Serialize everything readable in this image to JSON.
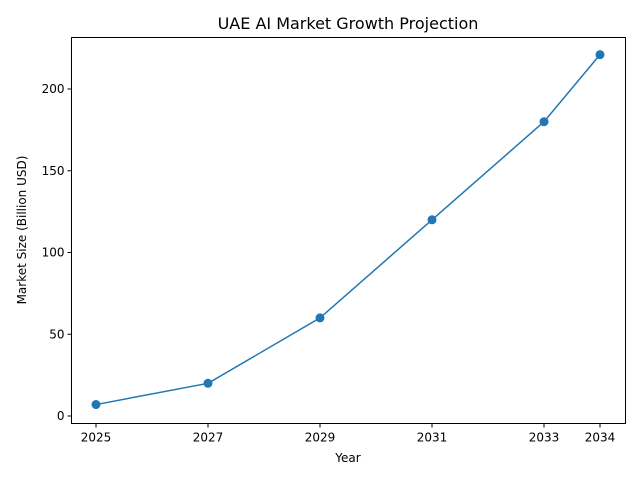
{
  "chart_data": {
    "type": "line",
    "title": "UAE AI Market Growth Projection",
    "xlabel": "Year",
    "ylabel": "Market Size (Billion USD)",
    "x": [
      2025,
      2027,
      2029,
      2031,
      2033,
      2034
    ],
    "y": [
      7,
      20,
      60,
      120,
      180,
      221
    ],
    "xticks": [
      2025,
      2027,
      2029,
      2031,
      2033,
      2034
    ],
    "yticks": [
      0,
      50,
      100,
      150,
      200
    ],
    "xlim": [
      2024.55,
      2035.45
    ],
    "ylim": [
      -5,
      232
    ],
    "grid": false,
    "marker": "circle",
    "color": "#1f77b4"
  }
}
